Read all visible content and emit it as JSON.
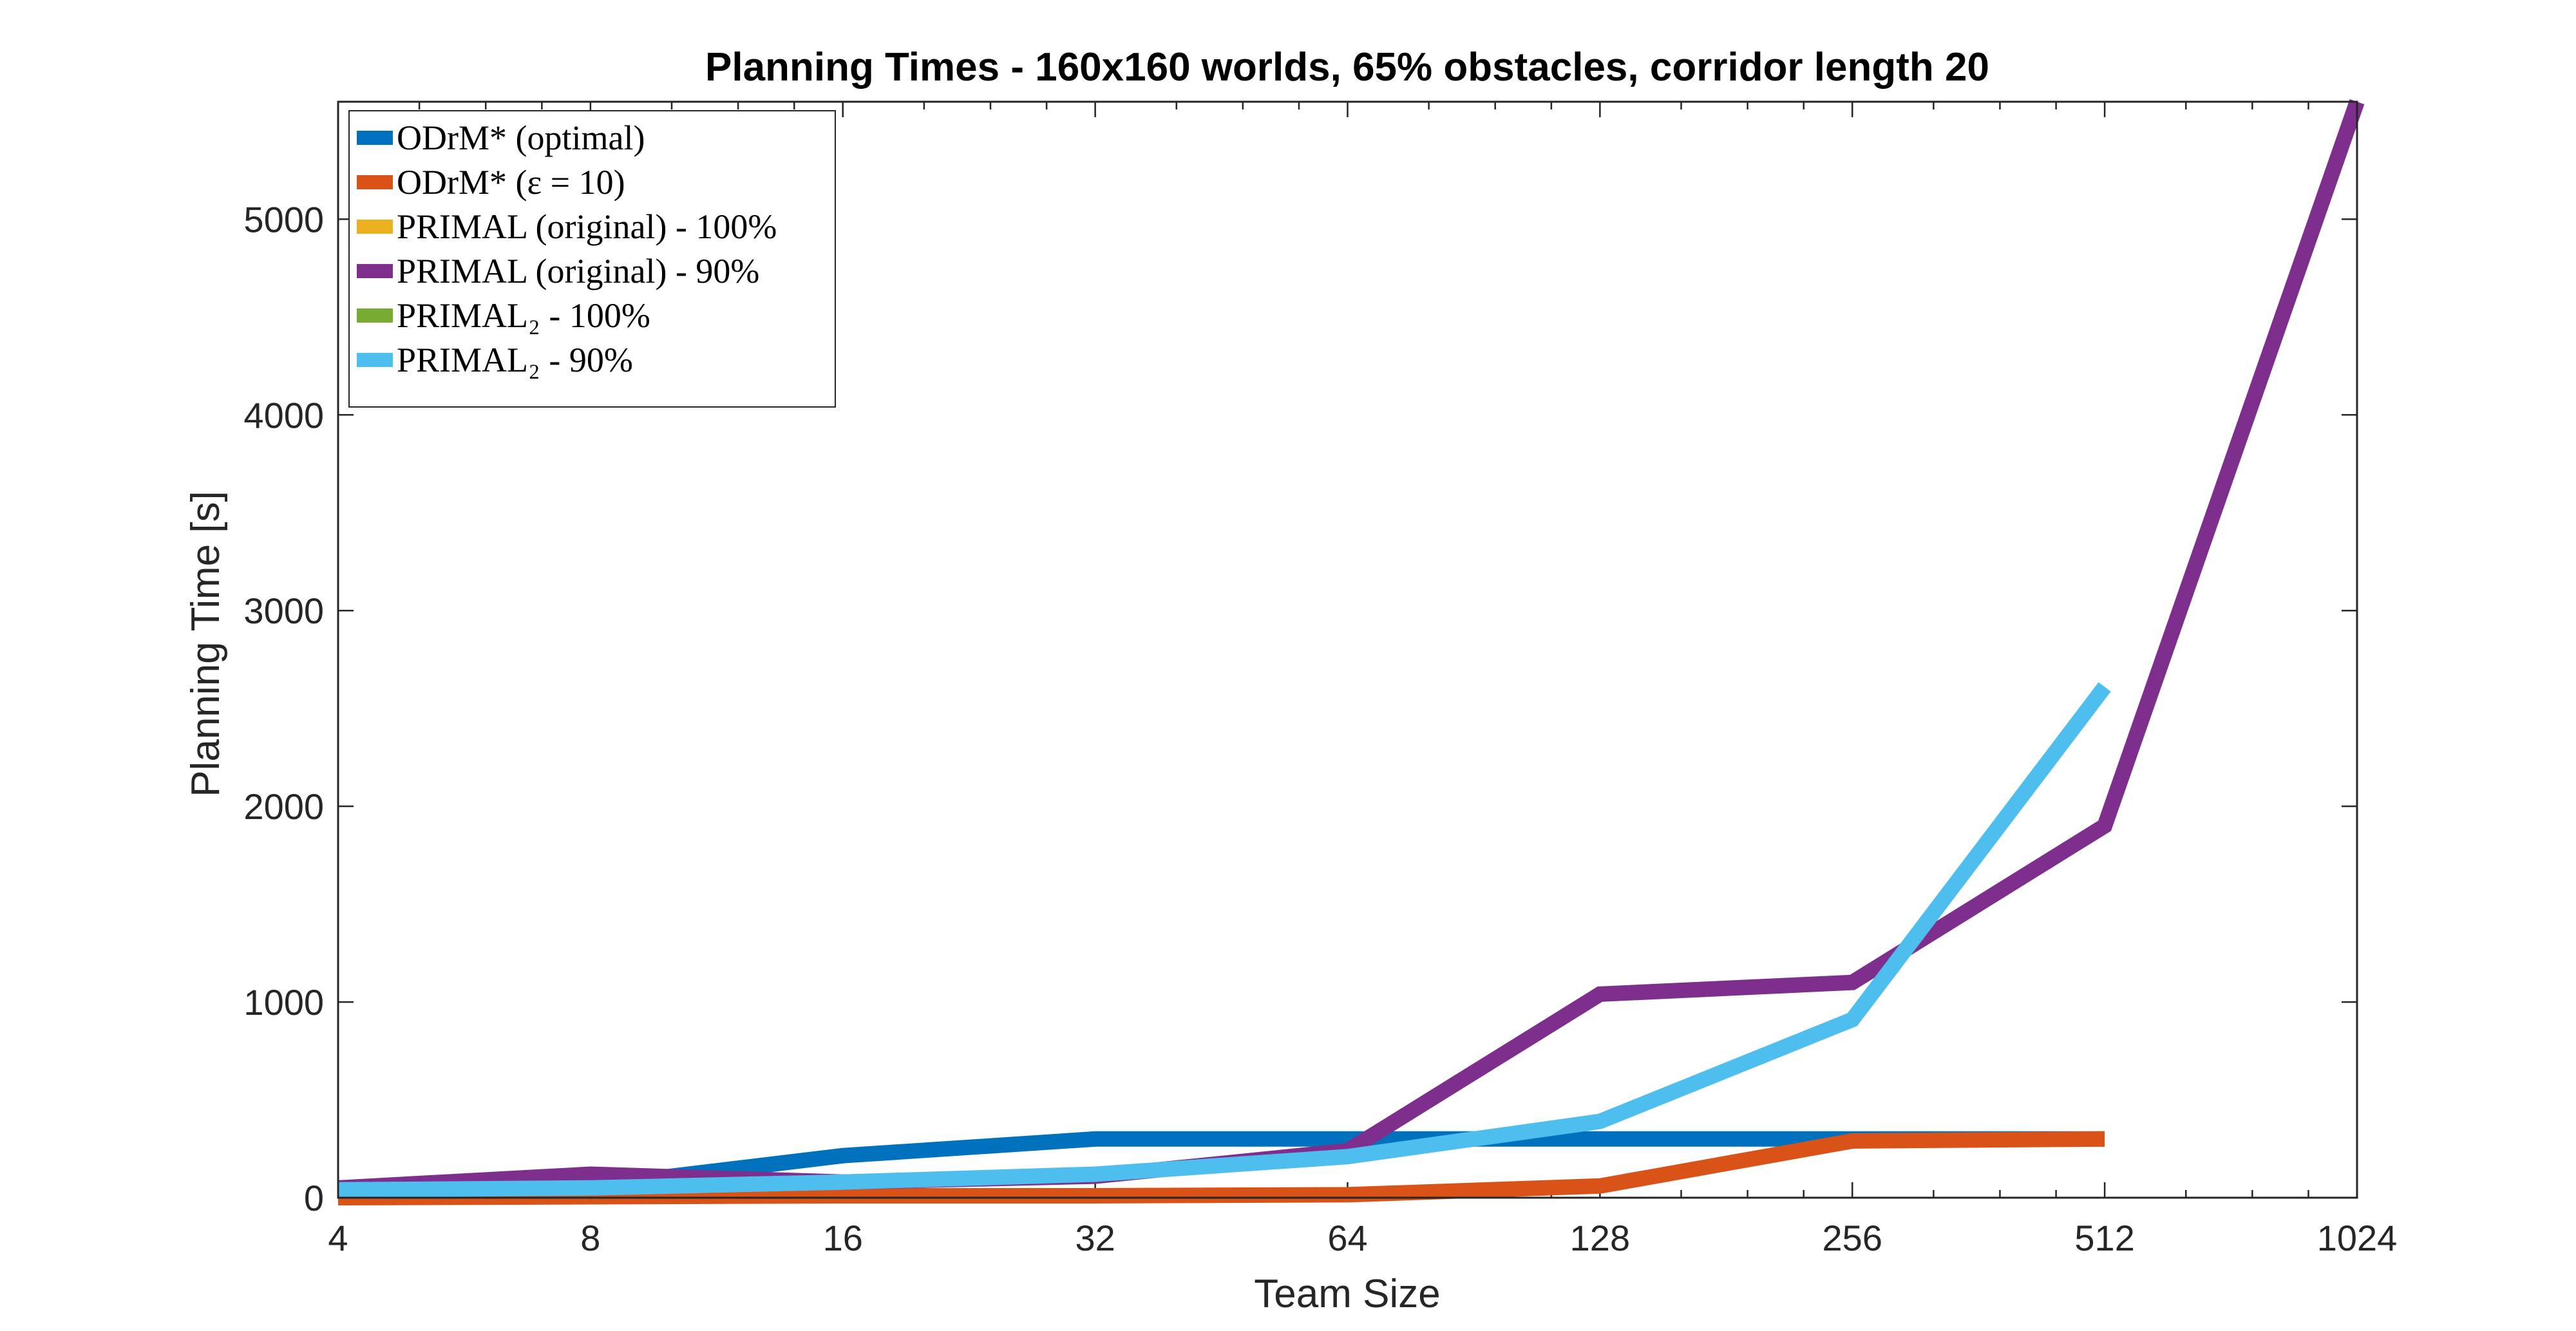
{
  "chart_data": {
    "type": "line",
    "title": "Planning Times - 160x160 worlds, 65% obstacles, corridor length 20",
    "xlabel": "Team Size",
    "ylabel": "Planning Time [s]",
    "x_scale": "log2",
    "xlim": [
      4,
      1024
    ],
    "ylim": [
      0,
      5600
    ],
    "x_ticks": [
      4,
      8,
      16,
      32,
      64,
      128,
      256,
      512,
      1024
    ],
    "x_tick_labels": [
      "4",
      "8",
      "16",
      "32",
      "64",
      "128",
      "256",
      "512",
      "1024"
    ],
    "y_ticks": [
      0,
      1000,
      2000,
      3000,
      4000,
      5000
    ],
    "y_tick_labels": [
      "0",
      "1000",
      "2000",
      "3000",
      "4000",
      "5000"
    ],
    "grid": false,
    "legend_position": "top-left",
    "series": [
      {
        "name": "ODrM* (optimal)",
        "color": "#0072BD",
        "x": [
          4,
          8,
          16,
          32,
          64,
          128,
          256,
          512
        ],
        "y": [
          50,
          60,
          215,
          300,
          300,
          300,
          300,
          300
        ]
      },
      {
        "name": "ODrM* (ε = 10)",
        "color": "#D95319",
        "x": [
          4,
          8,
          16,
          32,
          64,
          128,
          256,
          512
        ],
        "y": [
          0,
          5,
          10,
          10,
          15,
          60,
          290,
          300
        ]
      },
      {
        "name": "PRIMAL (original) - 100%",
        "color": "#EDB120",
        "x": [],
        "y": []
      },
      {
        "name": "PRIMAL (original) - 90%",
        "color": "#7E2F8E",
        "x": [
          4,
          8,
          16,
          32,
          64,
          128,
          256,
          512,
          1024
        ],
        "y": [
          50,
          120,
          80,
          110,
          240,
          1040,
          1100,
          1900,
          5600
        ]
      },
      {
        "name": "PRIMAL₂ - 100%",
        "color": "#77AC30",
        "x": [],
        "y": []
      },
      {
        "name": "PRIMAL₂ - 90%",
        "color": "#4DBEEE",
        "x": [
          4,
          8,
          16,
          32,
          64,
          128,
          256,
          512
        ],
        "y": [
          40,
          50,
          80,
          120,
          210,
          390,
          910,
          2610
        ]
      }
    ]
  }
}
